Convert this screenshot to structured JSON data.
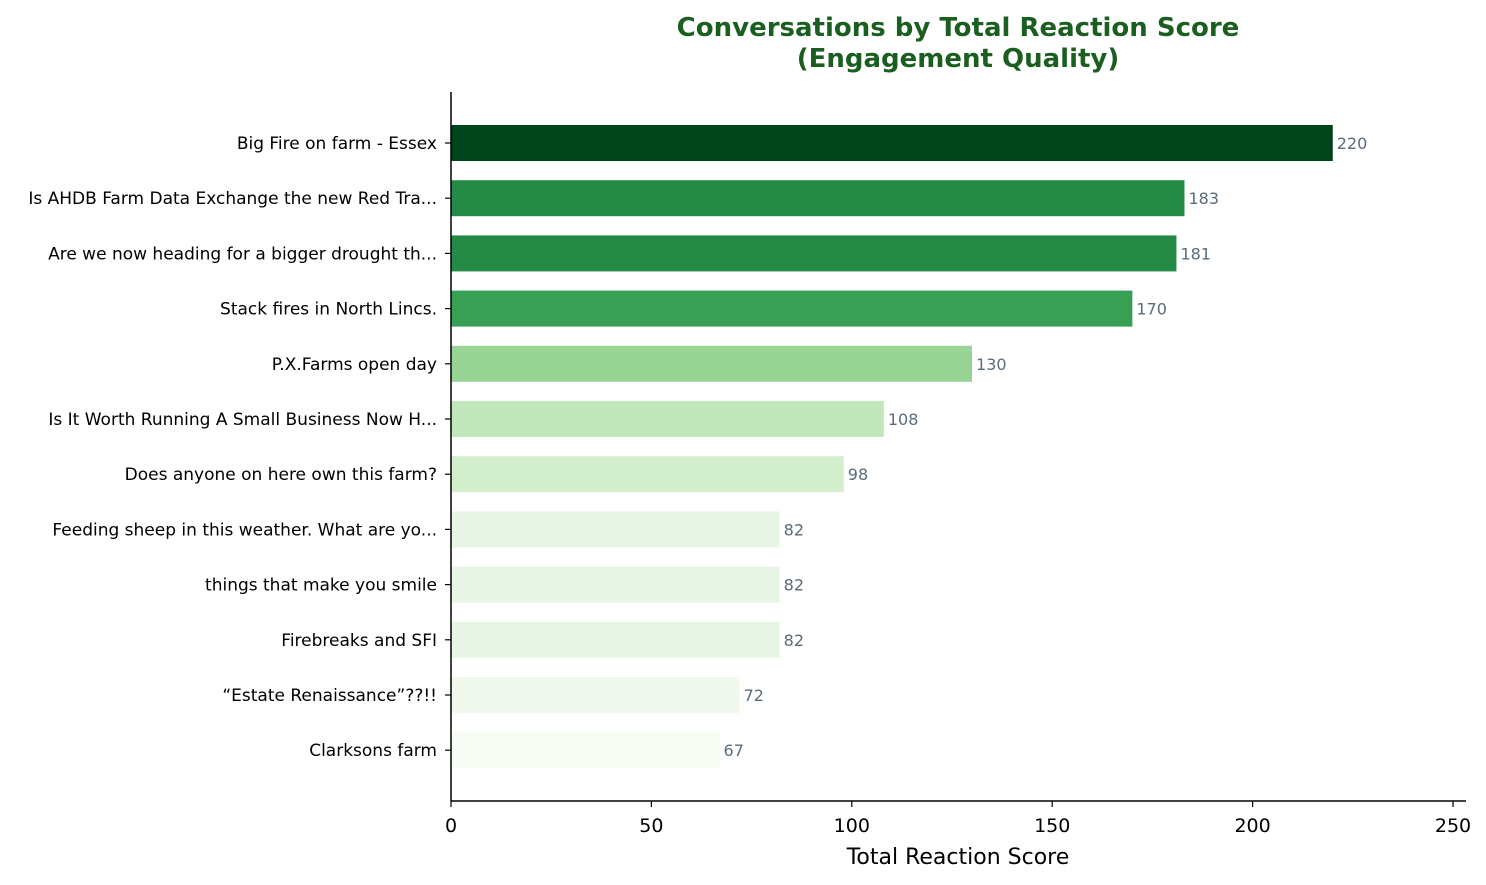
{
  "chart_data": {
    "type": "bar",
    "orientation": "horizontal",
    "title": "Conversations by Total Reaction Score",
    "subtitle": "(Engagement Quality)",
    "xlabel": "Total Reaction Score",
    "ylabel": "",
    "xlim": [
      0,
      250
    ],
    "xticks": [
      0,
      50,
      100,
      150,
      200,
      250
    ],
    "grid": false,
    "categories": [
      "Big Fire on farm - Essex",
      "Is AHDB Farm Data Exchange the new Red Tra...",
      "Are we now heading for a bigger drought th...",
      "Stack fires in North Lincs.",
      "P.X.Farms open day",
      "Is It Worth Running A Small Business Now H...",
      "Does anyone on here own this farm?",
      "Feeding sheep in this weather. What are yo...",
      "things that make you smile",
      "Firebreaks and SFI",
      "“Estate Renaissance”??!!",
      "Clarksons farm"
    ],
    "values": [
      220,
      183,
      181,
      170,
      130,
      108,
      98,
      82,
      82,
      82,
      72,
      67
    ],
    "bar_colors": [
      "#00441b",
      "#238b45",
      "#238b45",
      "#37a055",
      "#98d594",
      "#c3e7bc",
      "#d3eecd",
      "#e7f6e4",
      "#e7f6e4",
      "#e7f6e4",
      "#f1f9ef",
      "#f7fcf5"
    ],
    "colors": {
      "title": "#1a5e20",
      "value_label": "#5a6b7a",
      "axis": "#000000"
    }
  }
}
